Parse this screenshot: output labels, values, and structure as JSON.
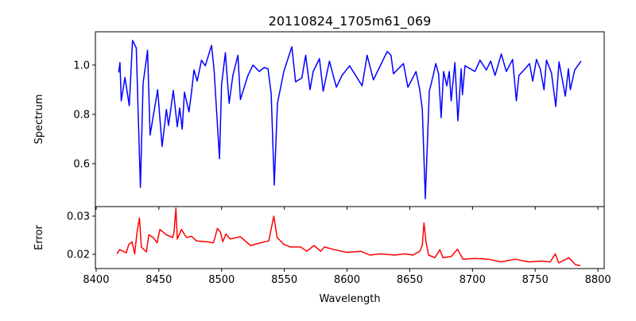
{
  "chart_data": [
    {
      "type": "line",
      "title": "20110824_1705m61_069",
      "xlabel": "",
      "ylabel": "Spectrum",
      "xlim": [
        8399.4,
        8805
      ],
      "ylim": [
        0.426,
        1.135
      ],
      "yticks": [
        0.6,
        0.8,
        1.0
      ],
      "ytick_labels": [
        "0.6",
        "0.8",
        "1.0"
      ],
      "grid": false,
      "color": "#0000ff",
      "series": [
        {
          "name": "Spectrum",
          "x": [
            8418,
            8419,
            8420,
            8423,
            8426.4,
            8429,
            8432,
            8435.3,
            8437.4,
            8441,
            8443,
            8449,
            8452.6,
            8456,
            8457.7,
            8461.5,
            8464.7,
            8466.6,
            8468.6,
            8470.4,
            8474,
            8476,
            8478,
            8480.5,
            8484,
            8487,
            8492,
            8494,
            8498.3,
            8500,
            8503,
            8506,
            8509,
            8513,
            8515,
            8521,
            8525,
            8530,
            8534,
            8537,
            8539.5,
            8542,
            8544.5,
            8549.6,
            8556,
            8559,
            8564,
            8567,
            8570.5,
            8573,
            8578,
            8581,
            8586,
            8591.5,
            8596,
            8602,
            8612,
            8616,
            8621,
            8632,
            8635,
            8637,
            8645,
            8648.5,
            8655,
            8658,
            8660,
            8662.4,
            8665.6,
            8669,
            8670.7,
            8673,
            8675,
            8677,
            8679.5,
            8681.5,
            8683,
            8686,
            8688.4,
            8691,
            8692,
            8694,
            8702,
            8706,
            8711,
            8714.5,
            8718,
            8723,
            8727,
            8732,
            8735,
            8737,
            8742,
            8745.5,
            8748,
            8751,
            8754,
            8757,
            8759,
            8763,
            8766.4,
            8769,
            8774,
            8776.5,
            8778,
            8781.5,
            8786.5
          ],
          "y": [
            0.97,
            1.01,
            0.855,
            0.95,
            0.835,
            1.1,
            1.07,
            0.504,
            0.926,
            1.06,
            0.716,
            0.9,
            0.67,
            0.82,
            0.755,
            0.897,
            0.75,
            0.826,
            0.74,
            0.89,
            0.81,
            0.89,
            0.98,
            0.935,
            1.02,
            0.997,
            1.08,
            0.98,
            0.62,
            0.92,
            1.05,
            0.845,
            0.958,
            1.04,
            0.86,
            0.958,
            1.0,
            0.974,
            0.99,
            0.985,
            0.884,
            0.513,
            0.845,
            0.974,
            1.074,
            0.932,
            0.948,
            1.04,
            0.9,
            0.974,
            1.026,
            0.894,
            1.016,
            0.91,
            0.958,
            0.997,
            0.916,
            1.04,
            0.94,
            1.055,
            1.04,
            0.965,
            1.006,
            0.91,
            0.974,
            0.9,
            0.82,
            0.458,
            0.894,
            0.965,
            1.006,
            0.965,
            0.787,
            0.974,
            0.916,
            0.974,
            0.855,
            1.01,
            0.774,
            0.985,
            0.88,
            0.997,
            0.974,
            1.02,
            0.98,
            1.016,
            0.958,
            1.045,
            0.974,
            1.023,
            0.855,
            0.958,
            0.985,
            1.006,
            0.935,
            1.023,
            0.985,
            0.9,
            1.02,
            0.968,
            0.832,
            1.013,
            0.874,
            0.985,
            0.9,
            0.98,
            1.016
          ]
        }
      ]
    },
    {
      "type": "line",
      "title": "",
      "xlabel": "Wavelength",
      "ylabel": "Error",
      "xlim": [
        8399.4,
        8805
      ],
      "ylim": [
        0.01625,
        0.0325
      ],
      "xticks": [
        8400,
        8450,
        8500,
        8550,
        8600,
        8650,
        8700,
        8750,
        8800
      ],
      "xtick_labels": [
        "8400",
        "8450",
        "8500",
        "8550",
        "8600",
        "8650",
        "8700",
        "8750",
        "8800"
      ],
      "yticks": [
        0.02,
        0.03
      ],
      "ytick_labels": [
        "0.02",
        "0.03"
      ],
      "grid": false,
      "color": "#ff0000",
      "series": [
        {
          "name": "Error",
          "x": [
            8416.6,
            8418.7,
            8424,
            8426,
            8428.6,
            8430.7,
            8432.6,
            8434.5,
            8436,
            8440,
            8442,
            8445.4,
            8448.6,
            8450.8,
            8456,
            8461,
            8462,
            8463.6,
            8464.7,
            8468,
            8472,
            8476,
            8480,
            8488,
            8493.5,
            8496.7,
            8499,
            8501,
            8503.4,
            8507,
            8515,
            8523,
            8531,
            8537.6,
            8541.6,
            8544.3,
            8549.6,
            8555,
            8563,
            8568,
            8573.7,
            8579,
            8582,
            8590,
            8600,
            8611,
            8618,
            8627,
            8638,
            8646,
            8652.5,
            8658,
            8660,
            8661.3,
            8663,
            8665,
            8670,
            8674,
            8676.5,
            8683,
            8688,
            8692.5,
            8702,
            8712.6,
            8723,
            8734,
            8744.7,
            8755,
            8762,
            8766,
            8768.7,
            8776.8,
            8782,
            8786
          ],
          "y": [
            0.0201,
            0.0212,
            0.0204,
            0.0226,
            0.0232,
            0.0201,
            0.0258,
            0.0295,
            0.0219,
            0.0206,
            0.0251,
            0.0244,
            0.023,
            0.0265,
            0.0251,
            0.0244,
            0.0256,
            0.0321,
            0.024,
            0.0265,
            0.0244,
            0.0247,
            0.0235,
            0.0233,
            0.023,
            0.0268,
            0.0258,
            0.0233,
            0.0253,
            0.024,
            0.0246,
            0.0223,
            0.023,
            0.0235,
            0.03,
            0.0244,
            0.0226,
            0.0219,
            0.0219,
            0.0208,
            0.0223,
            0.0208,
            0.0219,
            0.0212,
            0.0205,
            0.0208,
            0.0198,
            0.0201,
            0.0198,
            0.0201,
            0.0198,
            0.0208,
            0.0223,
            0.0282,
            0.0233,
            0.0198,
            0.0191,
            0.0212,
            0.0191,
            0.0194,
            0.0213,
            0.0187,
            0.0189,
            0.0187,
            0.018,
            0.0187,
            0.018,
            0.0182,
            0.018,
            0.0201,
            0.0177,
            0.0191,
            0.0173,
            0.017
          ]
        }
      ]
    }
  ]
}
